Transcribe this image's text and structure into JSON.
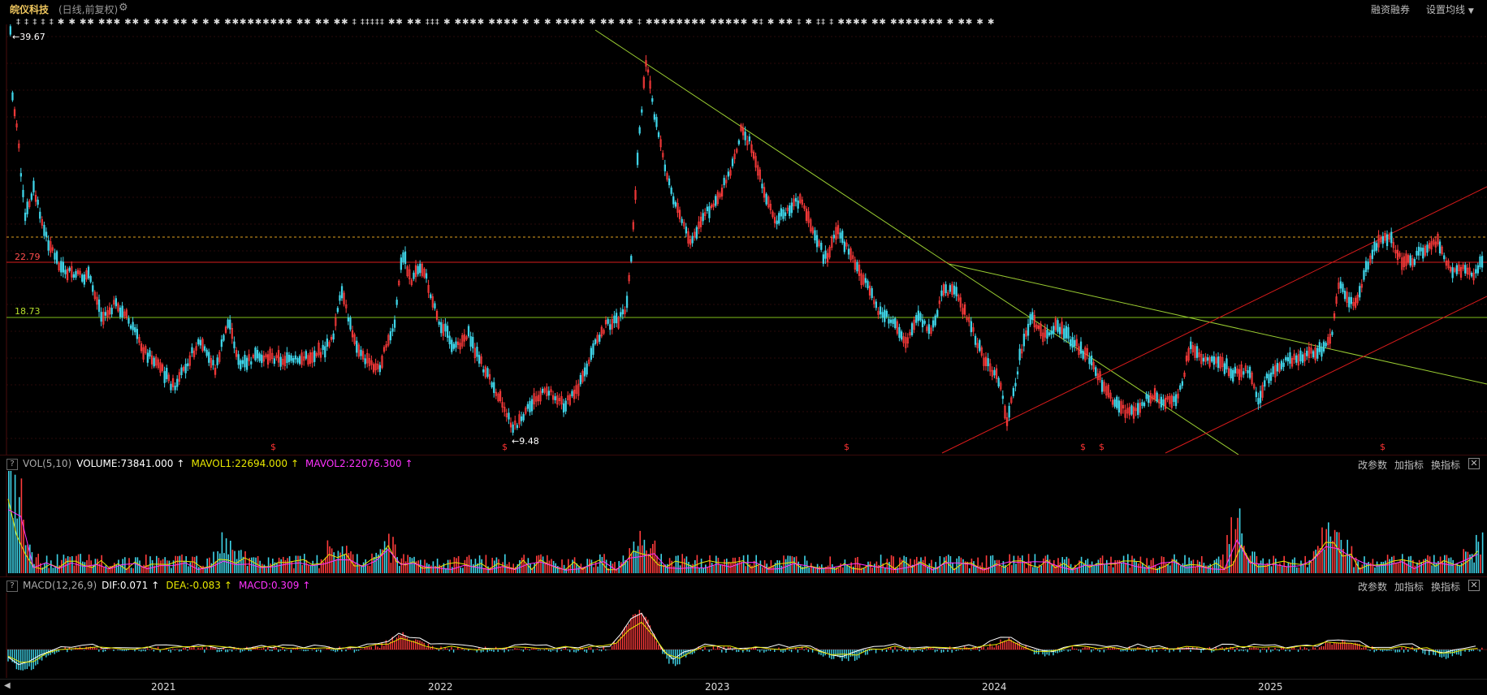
{
  "header": {
    "stock_name": "皖仪科技",
    "mode": "(日线,前复权)",
    "margin_btn": "融资融券",
    "ma_btn": "设置均线"
  },
  "signal_marks": "‡ ‡ ‡    ‡ ‡          ✱  ✱  ✱✱    ✱✱✱  ✱✱ ✱    ✱✱ ✱✱  ✱ ✱ ✱    ✱✱✱✱✱✱✱✱✱  ✱✱ ✱✱   ✱✱  ‡ ‡‡‡‡‡  ✱✱ ✱✱ ‡‡‡  ✱  ✱✱✱✱  ✱✱✱✱     ✱  ✱    ✱   ✱✱✱✱    ✱ ✱✱    ✱✱    ‡   ✱✱✱✱✱✱✱✱   ✱✱✱✱✱  ✱‡  ✱ ✱✱  ‡ ✱  ‡‡ ‡    ✱✱✱✱   ✱✱   ✱✱✱✱✱✱✱  ✱  ✱✱  ✱  ✱",
  "main_chart": {
    "high_label": "39.67",
    "low_label": "9.48",
    "red_line_label": "22.79",
    "green_line_label": "18.73",
    "dollar_mark": "$"
  },
  "volume_panel": {
    "name": "VOL(5,10)",
    "volume": "VOLUME:73841.000",
    "mavol1": "MAVOL1:22694.000",
    "mavol2": "MAVOL2:22076.300",
    "arrow": "↑"
  },
  "macd_panel": {
    "name": "MACD(12,26,9)",
    "dif": "DIF:0.071",
    "dea": "DEA:-0.083",
    "macd": "MACD:0.309",
    "arrow": "↑"
  },
  "panel_buttons": {
    "change_params": "改参数",
    "add_indicator": "加指标",
    "switch_indicator": "换指标",
    "close": "✕",
    "help": "?"
  },
  "x_axis": [
    "2021",
    "2022",
    "2023",
    "2024",
    "2025"
  ],
  "colors": {
    "up": "#ff3b3b",
    "down": "#3fd4e8",
    "trend_green": "#9acd32",
    "trend_red": "#e01a1a"
  }
}
